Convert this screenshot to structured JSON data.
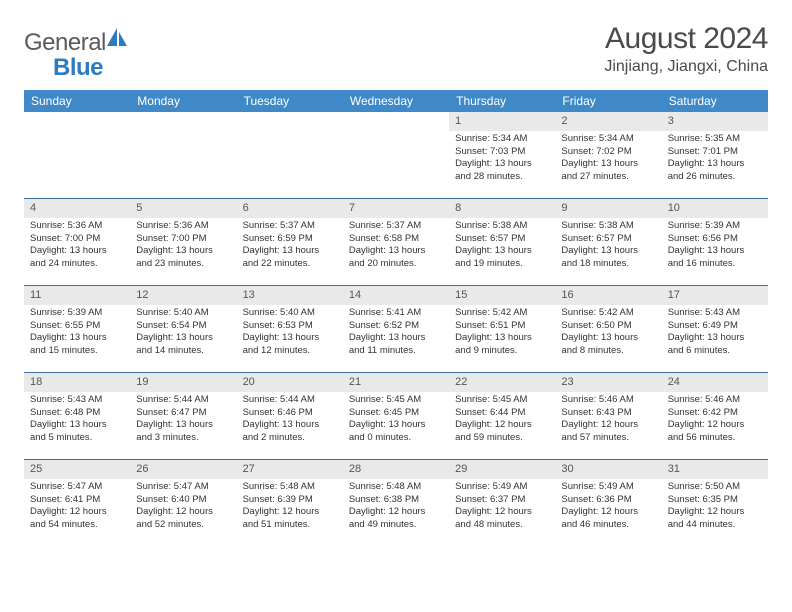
{
  "logo": {
    "text_a": "General",
    "text_b": "Blue"
  },
  "header": {
    "title": "August 2024",
    "location": "Jinjiang, Jiangxi, China"
  },
  "colors": {
    "header_bg": "#3f89c8",
    "row_border": "#3f6fa2",
    "daynum_bg": "#e9e9e9",
    "text": "#333333",
    "logo_gray": "#5a5a5a",
    "logo_blue": "#2f7bbf"
  },
  "weekdays": [
    "Sunday",
    "Monday",
    "Tuesday",
    "Wednesday",
    "Thursday",
    "Friday",
    "Saturday"
  ],
  "weeks": [
    [
      {
        "n": "",
        "sr": "",
        "ss": "",
        "dl": ""
      },
      {
        "n": "",
        "sr": "",
        "ss": "",
        "dl": ""
      },
      {
        "n": "",
        "sr": "",
        "ss": "",
        "dl": ""
      },
      {
        "n": "",
        "sr": "",
        "ss": "",
        "dl": ""
      },
      {
        "n": "1",
        "sr": "Sunrise: 5:34 AM",
        "ss": "Sunset: 7:03 PM",
        "dl": "Daylight: 13 hours and 28 minutes."
      },
      {
        "n": "2",
        "sr": "Sunrise: 5:34 AM",
        "ss": "Sunset: 7:02 PM",
        "dl": "Daylight: 13 hours and 27 minutes."
      },
      {
        "n": "3",
        "sr": "Sunrise: 5:35 AM",
        "ss": "Sunset: 7:01 PM",
        "dl": "Daylight: 13 hours and 26 minutes."
      }
    ],
    [
      {
        "n": "4",
        "sr": "Sunrise: 5:36 AM",
        "ss": "Sunset: 7:00 PM",
        "dl": "Daylight: 13 hours and 24 minutes."
      },
      {
        "n": "5",
        "sr": "Sunrise: 5:36 AM",
        "ss": "Sunset: 7:00 PM",
        "dl": "Daylight: 13 hours and 23 minutes."
      },
      {
        "n": "6",
        "sr": "Sunrise: 5:37 AM",
        "ss": "Sunset: 6:59 PM",
        "dl": "Daylight: 13 hours and 22 minutes."
      },
      {
        "n": "7",
        "sr": "Sunrise: 5:37 AM",
        "ss": "Sunset: 6:58 PM",
        "dl": "Daylight: 13 hours and 20 minutes."
      },
      {
        "n": "8",
        "sr": "Sunrise: 5:38 AM",
        "ss": "Sunset: 6:57 PM",
        "dl": "Daylight: 13 hours and 19 minutes."
      },
      {
        "n": "9",
        "sr": "Sunrise: 5:38 AM",
        "ss": "Sunset: 6:57 PM",
        "dl": "Daylight: 13 hours and 18 minutes."
      },
      {
        "n": "10",
        "sr": "Sunrise: 5:39 AM",
        "ss": "Sunset: 6:56 PM",
        "dl": "Daylight: 13 hours and 16 minutes."
      }
    ],
    [
      {
        "n": "11",
        "sr": "Sunrise: 5:39 AM",
        "ss": "Sunset: 6:55 PM",
        "dl": "Daylight: 13 hours and 15 minutes."
      },
      {
        "n": "12",
        "sr": "Sunrise: 5:40 AM",
        "ss": "Sunset: 6:54 PM",
        "dl": "Daylight: 13 hours and 14 minutes."
      },
      {
        "n": "13",
        "sr": "Sunrise: 5:40 AM",
        "ss": "Sunset: 6:53 PM",
        "dl": "Daylight: 13 hours and 12 minutes."
      },
      {
        "n": "14",
        "sr": "Sunrise: 5:41 AM",
        "ss": "Sunset: 6:52 PM",
        "dl": "Daylight: 13 hours and 11 minutes."
      },
      {
        "n": "15",
        "sr": "Sunrise: 5:42 AM",
        "ss": "Sunset: 6:51 PM",
        "dl": "Daylight: 13 hours and 9 minutes."
      },
      {
        "n": "16",
        "sr": "Sunrise: 5:42 AM",
        "ss": "Sunset: 6:50 PM",
        "dl": "Daylight: 13 hours and 8 minutes."
      },
      {
        "n": "17",
        "sr": "Sunrise: 5:43 AM",
        "ss": "Sunset: 6:49 PM",
        "dl": "Daylight: 13 hours and 6 minutes."
      }
    ],
    [
      {
        "n": "18",
        "sr": "Sunrise: 5:43 AM",
        "ss": "Sunset: 6:48 PM",
        "dl": "Daylight: 13 hours and 5 minutes."
      },
      {
        "n": "19",
        "sr": "Sunrise: 5:44 AM",
        "ss": "Sunset: 6:47 PM",
        "dl": "Daylight: 13 hours and 3 minutes."
      },
      {
        "n": "20",
        "sr": "Sunrise: 5:44 AM",
        "ss": "Sunset: 6:46 PM",
        "dl": "Daylight: 13 hours and 2 minutes."
      },
      {
        "n": "21",
        "sr": "Sunrise: 5:45 AM",
        "ss": "Sunset: 6:45 PM",
        "dl": "Daylight: 13 hours and 0 minutes."
      },
      {
        "n": "22",
        "sr": "Sunrise: 5:45 AM",
        "ss": "Sunset: 6:44 PM",
        "dl": "Daylight: 12 hours and 59 minutes."
      },
      {
        "n": "23",
        "sr": "Sunrise: 5:46 AM",
        "ss": "Sunset: 6:43 PM",
        "dl": "Daylight: 12 hours and 57 minutes."
      },
      {
        "n": "24",
        "sr": "Sunrise: 5:46 AM",
        "ss": "Sunset: 6:42 PM",
        "dl": "Daylight: 12 hours and 56 minutes."
      }
    ],
    [
      {
        "n": "25",
        "sr": "Sunrise: 5:47 AM",
        "ss": "Sunset: 6:41 PM",
        "dl": "Daylight: 12 hours and 54 minutes."
      },
      {
        "n": "26",
        "sr": "Sunrise: 5:47 AM",
        "ss": "Sunset: 6:40 PM",
        "dl": "Daylight: 12 hours and 52 minutes."
      },
      {
        "n": "27",
        "sr": "Sunrise: 5:48 AM",
        "ss": "Sunset: 6:39 PM",
        "dl": "Daylight: 12 hours and 51 minutes."
      },
      {
        "n": "28",
        "sr": "Sunrise: 5:48 AM",
        "ss": "Sunset: 6:38 PM",
        "dl": "Daylight: 12 hours and 49 minutes."
      },
      {
        "n": "29",
        "sr": "Sunrise: 5:49 AM",
        "ss": "Sunset: 6:37 PM",
        "dl": "Daylight: 12 hours and 48 minutes."
      },
      {
        "n": "30",
        "sr": "Sunrise: 5:49 AM",
        "ss": "Sunset: 6:36 PM",
        "dl": "Daylight: 12 hours and 46 minutes."
      },
      {
        "n": "31",
        "sr": "Sunrise: 5:50 AM",
        "ss": "Sunset: 6:35 PM",
        "dl": "Daylight: 12 hours and 44 minutes."
      }
    ]
  ]
}
